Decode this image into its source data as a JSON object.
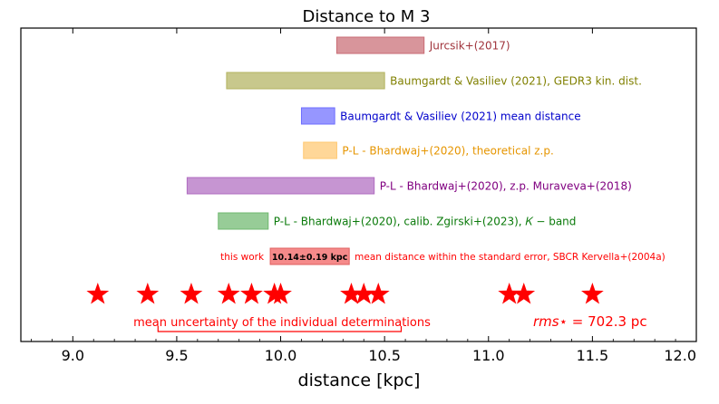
{
  "chart_data": {
    "type": "bar",
    "title": "Distance to M 3",
    "xlabel": "distance [kpc]",
    "ylabel": "",
    "xlim": [
      8.75,
      12.0
    ],
    "xticks": [
      "9.0",
      "9.5",
      "10.0",
      "10.5",
      "11.0",
      "11.5",
      "12.0"
    ],
    "tick_values": [
      9.0,
      9.5,
      10.0,
      10.5,
      11.0,
      11.5,
      12.0
    ],
    "grid": false,
    "series": [
      {
        "label": "Jurcsik+(2017)",
        "x0": 10.27,
        "x1": 10.69,
        "color": "#c96c74",
        "text_color": "#a0343c"
      },
      {
        "label": "Baumgardt & Vasiliev (2021), GEDR3 kin. dist.",
        "x0": 9.74,
        "x1": 10.5,
        "color": "#b3b35f",
        "text_color": "#808000"
      },
      {
        "label": "Baumgardt & Vasiliev (2021) mean distance",
        "x0": 10.1,
        "x1": 10.26,
        "color": "#6e6eff",
        "text_color": "#0000cc"
      },
      {
        "label": "P-L - Bhardwaj+(2020), theoretical z.p.",
        "x0": 10.11,
        "x1": 10.27,
        "color": "#ffc870",
        "text_color": "#e69500"
      },
      {
        "label": "P-L - Bhardwaj+(2020), z.p. Muraveva+(2018)",
        "x0": 9.55,
        "x1": 10.45,
        "color": "#b06cc0",
        "text_color": "#800080"
      },
      {
        "label": "P-L - Bhardwaj+(2020), calib. Zgirski+(2023), 𝐾 − band",
        "x0": 9.7,
        "x1": 9.94,
        "color": "#6fb86f",
        "text_color": "#0a7a0a"
      }
    ],
    "this_work": {
      "prefix": "this work",
      "box_label": "10.14±0.19 kpc",
      "suffix": "mean distance within the standard error, SBCR Kervella+(2004a)",
      "x0": 9.95,
      "x1": 10.33,
      "color": "#f58a8a",
      "text_color": "#ff0000"
    },
    "determinations": [
      9.12,
      9.36,
      9.57,
      9.75,
      9.86,
      9.97,
      10.0,
      10.34,
      10.4,
      10.47,
      11.1,
      11.17,
      11.5
    ],
    "uncertainty": {
      "label": "mean uncertainty of the individual determinations",
      "x0": 9.41,
      "x1": 10.58
    },
    "rms": {
      "symbol": "rms⋆",
      "value_text": "= 702.3 pc"
    },
    "accent_color": "#ff0000"
  }
}
